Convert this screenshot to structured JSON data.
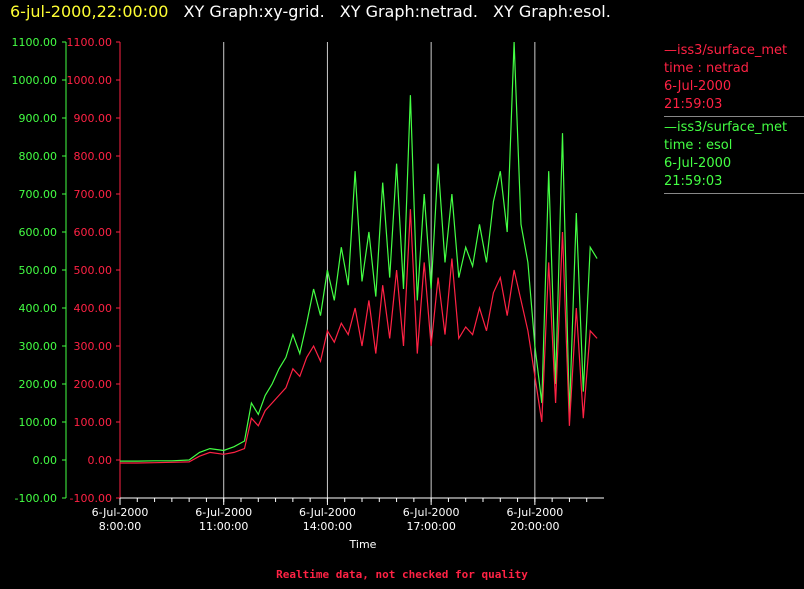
{
  "header": {
    "timestamp": "6-jul-2000,22:00:00",
    "titles": [
      "XY Graph:xy-grid.",
      "XY Graph:netrad.",
      "XY Graph:esol."
    ]
  },
  "legend": [
    {
      "line1": "—iss3/surface_met",
      "line2": "time : netrad",
      "line3": "6-Jul-2000",
      "line4": "21:59:03",
      "color": "#ff2244"
    },
    {
      "line1": "—iss3/surface_met",
      "line2": "time : esol",
      "line3": "6-Jul-2000",
      "line4": "21:59:03",
      "color": "#44ff44"
    }
  ],
  "footer": "Realtime data, not checked for quality",
  "colors": {
    "netrad": "#ff2244",
    "esol": "#44ff44",
    "grid": "#cccccc",
    "axis": "#ffffff"
  },
  "chart_data": {
    "type": "line",
    "xlabel": "Time",
    "x_ticks": [
      {
        "hour": 8,
        "date": "6-Jul-2000",
        "time": "8:00:00"
      },
      {
        "hour": 11,
        "date": "6-Jul-2000",
        "time": "11:00:00"
      },
      {
        "hour": 14,
        "date": "6-Jul-2000",
        "time": "14:00:00"
      },
      {
        "hour": 17,
        "date": "6-Jul-2000",
        "time": "17:00:00"
      },
      {
        "hour": 20,
        "date": "6-Jul-2000",
        "time": "20:00:00"
      }
    ],
    "xlim": [
      8,
      22
    ],
    "ylim": [
      -100,
      1100
    ],
    "y_ticks": [
      "-100.00",
      "0.00",
      "100.00",
      "200.00",
      "300.00",
      "400.00",
      "500.00",
      "600.00",
      "700.00",
      "800.00",
      "900.00",
      "1000.00",
      "1100.00"
    ],
    "grid_vertical": [
      11,
      14,
      17,
      20
    ],
    "series": [
      {
        "name": "time : netrad",
        "x": [
          8.0,
          8.5,
          9.0,
          9.5,
          10.0,
          10.3,
          10.6,
          11.0,
          11.3,
          11.6,
          11.8,
          12.0,
          12.2,
          12.4,
          12.6,
          12.8,
          13.0,
          13.2,
          13.4,
          13.6,
          13.8,
          14.0,
          14.2,
          14.4,
          14.6,
          14.8,
          15.0,
          15.2,
          15.4,
          15.6,
          15.8,
          16.0,
          16.2,
          16.4,
          16.6,
          16.8,
          17.0,
          17.2,
          17.4,
          17.6,
          17.8,
          18.0,
          18.2,
          18.4,
          18.6,
          18.8,
          19.0,
          19.2,
          19.4,
          19.6,
          19.8,
          20.0,
          20.2,
          20.4,
          20.6,
          20.8,
          21.0,
          21.2,
          21.4,
          21.6,
          21.8
        ],
        "y": [
          -8,
          -8,
          -7,
          -6,
          -5,
          10,
          20,
          15,
          20,
          30,
          110,
          90,
          130,
          150,
          170,
          190,
          240,
          220,
          270,
          300,
          260,
          340,
          310,
          360,
          330,
          400,
          300,
          420,
          280,
          460,
          320,
          500,
          300,
          660,
          280,
          520,
          300,
          480,
          330,
          530,
          320,
          350,
          330,
          400,
          340,
          440,
          480,
          380,
          500,
          420,
          340,
          220,
          100,
          520,
          150,
          600,
          90,
          400,
          110,
          340,
          320
        ]
      },
      {
        "name": "time : esol",
        "x": [
          8.0,
          8.5,
          9.0,
          9.5,
          10.0,
          10.3,
          10.6,
          11.0,
          11.3,
          11.6,
          11.8,
          12.0,
          12.2,
          12.4,
          12.6,
          12.8,
          13.0,
          13.2,
          13.4,
          13.6,
          13.8,
          14.0,
          14.2,
          14.4,
          14.6,
          14.8,
          15.0,
          15.2,
          15.4,
          15.6,
          15.8,
          16.0,
          16.2,
          16.4,
          16.6,
          16.8,
          17.0,
          17.2,
          17.4,
          17.6,
          17.8,
          18.0,
          18.2,
          18.4,
          18.6,
          18.8,
          19.0,
          19.2,
          19.4,
          19.6,
          19.8,
          20.0,
          20.2,
          20.4,
          20.6,
          20.8,
          21.0,
          21.2,
          21.4,
          21.6,
          21.8
        ],
        "y": [
          -3,
          -3,
          -2,
          -2,
          0,
          20,
          30,
          25,
          35,
          50,
          150,
          120,
          170,
          200,
          240,
          270,
          330,
          280,
          360,
          450,
          380,
          500,
          420,
          560,
          460,
          760,
          470,
          600,
          430,
          730,
          480,
          780,
          450,
          960,
          420,
          700,
          450,
          780,
          520,
          700,
          480,
          560,
          510,
          620,
          520,
          680,
          760,
          600,
          1100,
          620,
          520,
          300,
          150,
          760,
          200,
          860,
          120,
          650,
          180,
          560,
          530
        ]
      }
    ]
  }
}
